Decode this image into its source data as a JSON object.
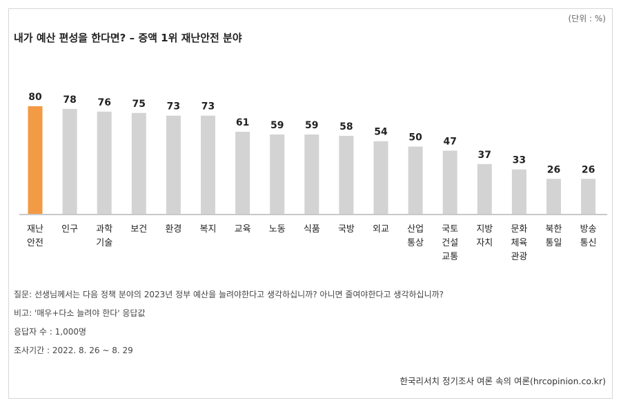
{
  "unit_label": "(단위 : %)",
  "title": "내가 예산 편성을 한다면? – 증액 1위 재난안전 분야",
  "chart_data": {
    "type": "bar",
    "categories": [
      [
        "재난",
        "안전"
      ],
      [
        "인구"
      ],
      [
        "과학",
        "기술"
      ],
      [
        "보건"
      ],
      [
        "환경"
      ],
      [
        "복지"
      ],
      [
        "교육"
      ],
      [
        "노동"
      ],
      [
        "식품"
      ],
      [
        "국방"
      ],
      [
        "외교"
      ],
      [
        "산업",
        "통상"
      ],
      [
        "국토",
        "건설",
        "교통"
      ],
      [
        "지방",
        "자치"
      ],
      [
        "문화",
        "체육",
        "관광"
      ],
      [
        "북한",
        "통일"
      ],
      [
        "방송",
        "통신"
      ]
    ],
    "values": [
      80,
      78,
      76,
      75,
      73,
      73,
      61,
      59,
      59,
      58,
      54,
      50,
      47,
      37,
      33,
      26,
      26
    ],
    "ylim": [
      0,
      100
    ],
    "highlight_index": 0,
    "highlight_color": "#f39a45",
    "bar_color": "#d3d3d3",
    "baseline_color": "#c8c8c8",
    "grid": false,
    "legend": "none"
  },
  "notes": [
    "질문: 선생님께서는 다음 정책 분야의 2023년 정부 예산을 늘려야한다고 생각하십니까? 아니면 줄여야한다고 생각하십니까?",
    "비고: '매우+다소 늘려야 한다' 응답값",
    "응답자 수 : 1,000명",
    "조사기간 : 2022. 8. 26 ~ 8. 29"
  ],
  "source": "한국리서치 정기조사 여론 속의 여론(hrcopinion.co.kr)"
}
